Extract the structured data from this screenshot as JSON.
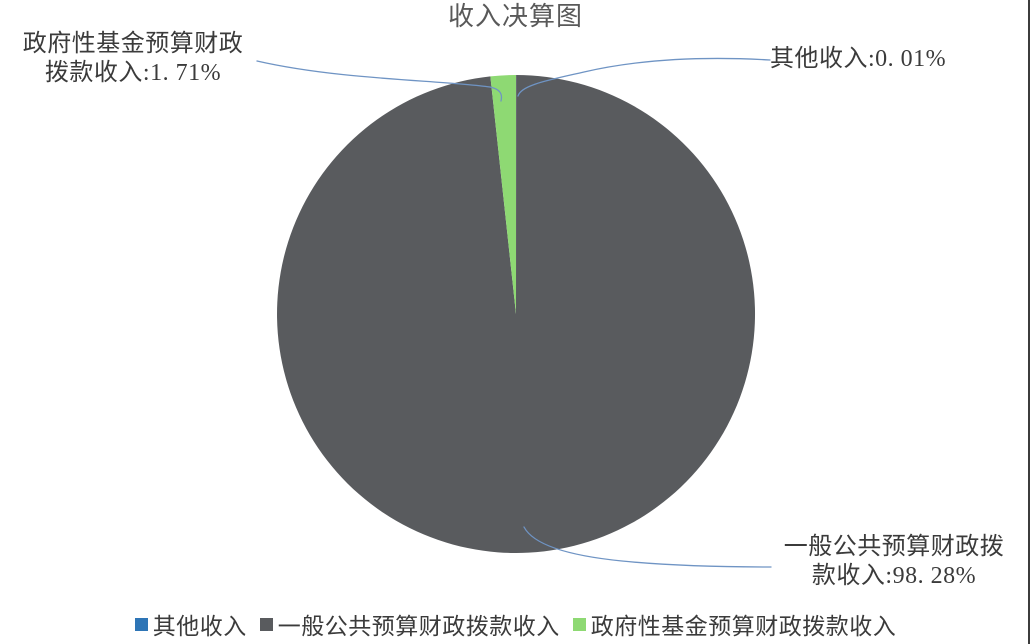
{
  "title": "收入决算图",
  "chart_data": {
    "type": "pie",
    "title": "收入决算图",
    "categories": [
      "其他收入",
      "一般公共预算财政拨款收入",
      "政府性基金预算财政拨款收入"
    ],
    "values": [
      0.01,
      98.28,
      1.71
    ],
    "value_unit": "%",
    "colors": [
      "#2e75b6",
      "#595b5e",
      "#8ed973"
    ],
    "start_angle": "top",
    "direction": "clockwise",
    "legend_position": "bottom",
    "leader_line_color": "#6f94c4",
    "background": "#ffffff"
  },
  "callouts": {
    "gov_fund": {
      "line1": "政府性基金预算财政",
      "line2": "拨款收入:1. 71%"
    },
    "other": {
      "text": "其他收入:0. 01%"
    },
    "general": {
      "line1": "一般公共预算财政拨",
      "line2": "款收入:98. 28%"
    }
  },
  "legend": {
    "items": [
      {
        "label": "其他收入",
        "color": "#2e75b6"
      },
      {
        "label": "一般公共预算财政拨款收入",
        "color": "#595b5e"
      },
      {
        "label": "政府性基金预算财政拨款收入",
        "color": "#8ed973"
      }
    ]
  }
}
